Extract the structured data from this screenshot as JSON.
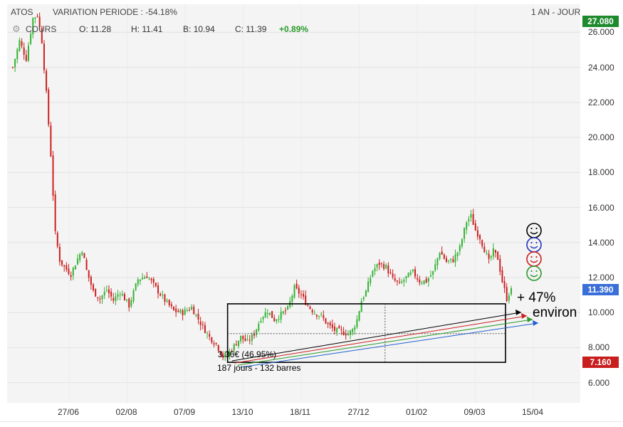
{
  "header": {
    "symbol": "ATOS",
    "variation": "VARIATION PERIODE : -54.18%",
    "period": "1 AN - JOUR",
    "series_label": "COURS",
    "open_label": "O:",
    "open": "11.28",
    "high_label": "H:",
    "high": "11.41",
    "low_label": "B:",
    "low": "10.94",
    "close_label": "C:",
    "close": "11.39",
    "change": "+0.89%"
  },
  "price_tags": {
    "top": "27.080",
    "last": "11.390",
    "bottom": "7.160"
  },
  "annotations": {
    "measure_value": "3.36€ (46.95%)",
    "measure_duration": "187 jours - 132 barres",
    "gain": "+ 47%",
    "gain_note": "environ"
  },
  "colors": {
    "up": "#33b233",
    "down": "#cc1f1f",
    "top_tag": "#1e8a2e",
    "last_tag": "#3a6fd8",
    "bottom_tag": "#c81e1e"
  },
  "chart_data": {
    "type": "candlestick",
    "title": "ATOS",
    "x_ticks": [
      "27/06",
      "02/08",
      "07/09",
      "13/10",
      "18/11",
      "27/12",
      "01/02",
      "09/03",
      "15/04"
    ],
    "y_ticks": [
      "6.000",
      "8.000",
      "10.000",
      "12.000",
      "14.000",
      "16.000",
      "18.000",
      "20.000",
      "22.000",
      "24.000",
      "26.000"
    ],
    "ylim": [
      4.85,
      27.6
    ],
    "last_price": 11.39,
    "period_high": 27.08,
    "period_low": 7.16,
    "close_path": [
      [
        0,
        24.0
      ],
      [
        3,
        25.5
      ],
      [
        6,
        24.5
      ],
      [
        9,
        26.8
      ],
      [
        11,
        27.0
      ],
      [
        13,
        25.5
      ],
      [
        15,
        22.5
      ],
      [
        17,
        19.0
      ],
      [
        19,
        14.5
      ],
      [
        21,
        13.0
      ],
      [
        23,
        12.6
      ],
      [
        26,
        12.2
      ],
      [
        28,
        12.8
      ],
      [
        31,
        13.6
      ],
      [
        33,
        12.4
      ],
      [
        36,
        11.2
      ],
      [
        39,
        10.8
      ],
      [
        42,
        11.3
      ],
      [
        45,
        10.7
      ],
      [
        48,
        11.2
      ],
      [
        52,
        10.4
      ],
      [
        56,
        11.9
      ],
      [
        60,
        12.1
      ],
      [
        64,
        11.4
      ],
      [
        68,
        10.7
      ],
      [
        72,
        10.1
      ],
      [
        76,
        10.0
      ],
      [
        80,
        10.3
      ],
      [
        84,
        9.4
      ],
      [
        88,
        8.6
      ],
      [
        91,
        8.2
      ],
      [
        94,
        7.5
      ],
      [
        96,
        7.6
      ],
      [
        99,
        8.1
      ],
      [
        102,
        8.6
      ],
      [
        105,
        8.3
      ],
      [
        108,
        8.8
      ],
      [
        111,
        9.7
      ],
      [
        114,
        10.1
      ],
      [
        117,
        9.6
      ],
      [
        120,
        9.9
      ],
      [
        123,
        10.2
      ],
      [
        126,
        11.4
      ],
      [
        129,
        11.0
      ],
      [
        132,
        10.4
      ],
      [
        135,
        10.0
      ],
      [
        138,
        9.8
      ],
      [
        141,
        9.3
      ],
      [
        144,
        9.0
      ],
      [
        147,
        8.9
      ],
      [
        150,
        8.8
      ],
      [
        152,
        9.0
      ],
      [
        154,
        9.6
      ],
      [
        156,
        10.7
      ],
      [
        158,
        11.2
      ],
      [
        161,
        12.4
      ],
      [
        164,
        12.8
      ],
      [
        167,
        12.6
      ],
      [
        170,
        11.9
      ],
      [
        173,
        11.6
      ],
      [
        176,
        12.0
      ],
      [
        179,
        12.3
      ],
      [
        182,
        11.8
      ],
      [
        185,
        11.8
      ],
      [
        188,
        12.3
      ],
      [
        191,
        13.5
      ],
      [
        194,
        12.9
      ],
      [
        197,
        13.0
      ],
      [
        200,
        13.7
      ],
      [
        203,
        15.2
      ],
      [
        205,
        15.5
      ],
      [
        207,
        14.7
      ],
      [
        209,
        14.3
      ],
      [
        211,
        13.6
      ],
      [
        213,
        12.9
      ],
      [
        215,
        13.5
      ],
      [
        217,
        13.1
      ],
      [
        219,
        11.8
      ],
      [
        221,
        10.8
      ],
      [
        223,
        11.39
      ]
    ],
    "measure_box": {
      "x_start": 91,
      "x_end": 223,
      "low": 7.16,
      "high": 10.5,
      "baseline": 8.8,
      "change": 3.36,
      "change_pct": 46.95,
      "days": 187,
      "bars": 132
    }
  }
}
